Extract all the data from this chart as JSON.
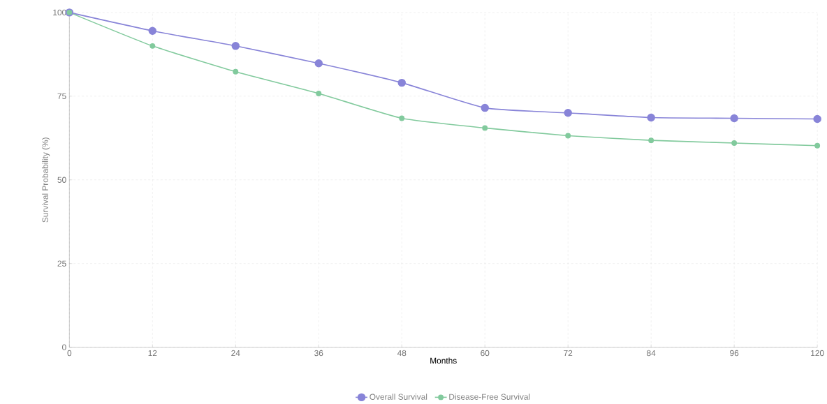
{
  "chart_data": {
    "type": "line",
    "xlabel": "Months",
    "ylabel": "Survival Probability (%)",
    "categories": [
      "0",
      "12",
      "24",
      "36",
      "48",
      "60",
      "72",
      "84",
      "96",
      "120"
    ],
    "series": [
      {
        "name": "Overall Survival",
        "color": "#8884d8",
        "values": [
          100,
          94.5,
          90,
          84.8,
          79,
          71.5,
          70,
          68.6,
          68.4,
          68.2
        ]
      },
      {
        "name": "Disease-Free Survival",
        "color": "#82ca9d",
        "values": [
          100,
          90,
          82.3,
          75.8,
          68.4,
          65.5,
          63.2,
          61.8,
          61,
          60.2
        ]
      }
    ],
    "ylim": [
      0,
      100
    ],
    "yticks": [
      0,
      25,
      50,
      75,
      100
    ],
    "grid": true,
    "legend": "bottom",
    "marker": "circle",
    "line_style": "solid"
  }
}
